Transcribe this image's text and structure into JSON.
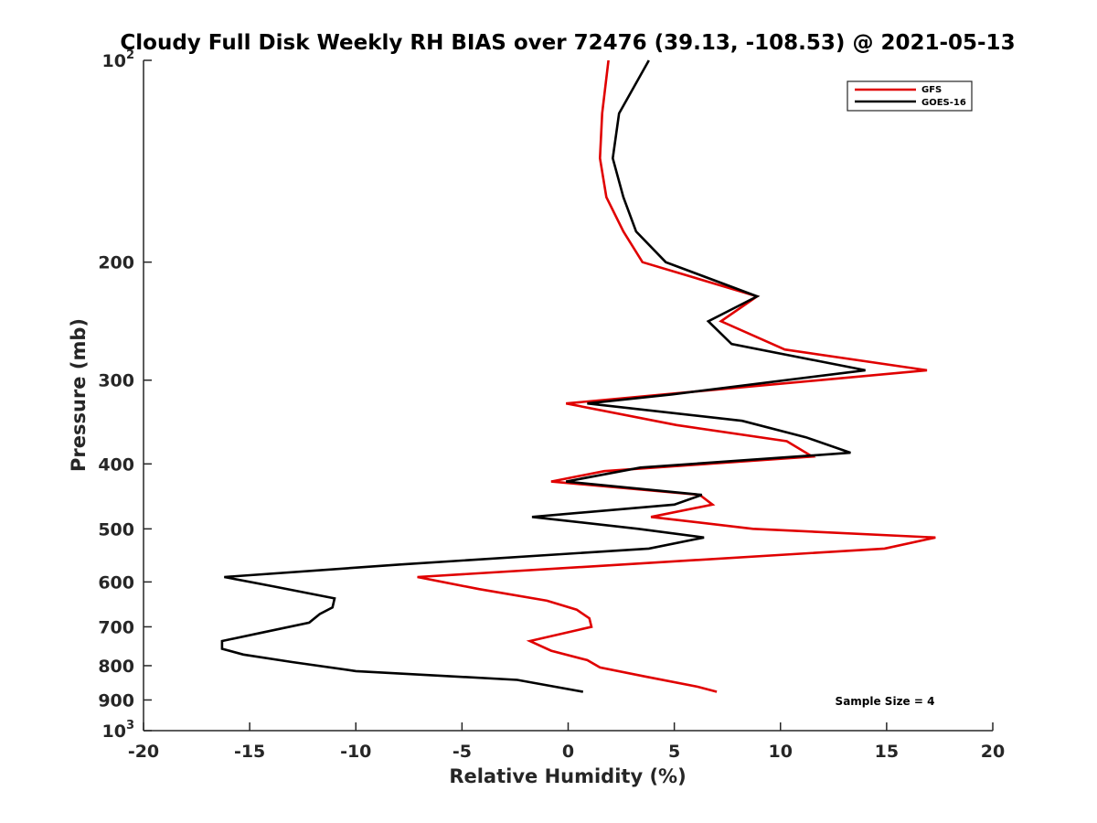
{
  "chart_data": {
    "type": "line",
    "title": "Cloudy Full Disk Weekly RH BIAS over 72476 (39.13, -108.53) @ 2021-05-13",
    "xlabel": "Relative Humidity (%)",
    "ylabel": "Pressure (mb)",
    "xlim": [
      -20,
      20
    ],
    "ylim": [
      100,
      1000
    ],
    "y_scale": "log",
    "y_reversed": true,
    "grid": false,
    "legend_position": "top-right",
    "x_ticks": [
      {
        "value": -20,
        "label": "-20"
      },
      {
        "value": -15,
        "label": "-15"
      },
      {
        "value": -10,
        "label": "-10"
      },
      {
        "value": -5,
        "label": "-5"
      },
      {
        "value": 0,
        "label": "0"
      },
      {
        "value": 5,
        "label": "5"
      },
      {
        "value": 10,
        "label": "10"
      },
      {
        "value": 15,
        "label": "15"
      },
      {
        "value": 20,
        "label": "20"
      }
    ],
    "y_ticks": [
      {
        "value": 100,
        "base": "10",
        "exp": "2"
      },
      {
        "value": 200,
        "label": "200"
      },
      {
        "value": 300,
        "label": "300"
      },
      {
        "value": 400,
        "label": "400"
      },
      {
        "value": 500,
        "label": "500"
      },
      {
        "value": 600,
        "label": "600"
      },
      {
        "value": 700,
        "label": "700"
      },
      {
        "value": 800,
        "label": "800"
      },
      {
        "value": 900,
        "label": "900"
      },
      {
        "value": 1000,
        "base": "10",
        "exp": "3"
      }
    ],
    "series": [
      {
        "name": "GFS",
        "color": "#e00000",
        "points": [
          [
            1.9,
            100
          ],
          [
            1.6,
            120
          ],
          [
            1.5,
            140
          ],
          [
            1.8,
            160
          ],
          [
            2.6,
            180
          ],
          [
            3.5,
            200
          ],
          [
            8.9,
            225
          ],
          [
            7.2,
            245
          ],
          [
            10.2,
            270
          ],
          [
            16.9,
            290
          ],
          [
            -0.1,
            325
          ],
          [
            5.1,
            350
          ],
          [
            10.3,
            370
          ],
          [
            11.5,
            390
          ],
          [
            1.7,
            410
          ],
          [
            -0.8,
            425
          ],
          [
            6.2,
            445
          ],
          [
            6.8,
            460
          ],
          [
            3.9,
            480
          ],
          [
            8.7,
            500
          ],
          [
            17.3,
            515
          ],
          [
            14.9,
            535
          ],
          [
            -7.1,
            590
          ],
          [
            -4.2,
            615
          ],
          [
            -1.0,
            640
          ],
          [
            0.4,
            660
          ],
          [
            1.0,
            680
          ],
          [
            1.1,
            700
          ],
          [
            -1.8,
            735
          ],
          [
            -0.8,
            760
          ],
          [
            0.9,
            785
          ],
          [
            1.5,
            805
          ],
          [
            3.6,
            830
          ],
          [
            6.1,
            860
          ],
          [
            7.0,
            875
          ]
        ]
      },
      {
        "name": "GOES-16",
        "color": "#000000",
        "points": [
          [
            3.8,
            100
          ],
          [
            2.4,
            120
          ],
          [
            2.1,
            140
          ],
          [
            2.6,
            160
          ],
          [
            3.2,
            180
          ],
          [
            4.6,
            200
          ],
          [
            8.9,
            225
          ],
          [
            6.6,
            245
          ],
          [
            7.7,
            265
          ],
          [
            14.0,
            290
          ],
          [
            4.9,
            315
          ],
          [
            0.9,
            325
          ],
          [
            8.2,
            345
          ],
          [
            11.2,
            365
          ],
          [
            13.3,
            385
          ],
          [
            3.4,
            405
          ],
          [
            -0.1,
            425
          ],
          [
            6.3,
            445
          ],
          [
            5.0,
            460
          ],
          [
            -1.7,
            480
          ],
          [
            3.3,
            500
          ],
          [
            6.4,
            515
          ],
          [
            3.8,
            535
          ],
          [
            -7.9,
            565
          ],
          [
            -16.2,
            590
          ],
          [
            -13.8,
            610
          ],
          [
            -11.0,
            635
          ],
          [
            -11.1,
            655
          ],
          [
            -11.7,
            670
          ],
          [
            -12.2,
            690
          ],
          [
            -14.5,
            715
          ],
          [
            -16.3,
            735
          ],
          [
            -16.3,
            755
          ],
          [
            -15.3,
            770
          ],
          [
            -13.0,
            790
          ],
          [
            -10.0,
            815
          ],
          [
            -2.4,
            840
          ],
          [
            0.7,
            875
          ]
        ]
      }
    ],
    "annotation": "Sample Size = 4"
  }
}
